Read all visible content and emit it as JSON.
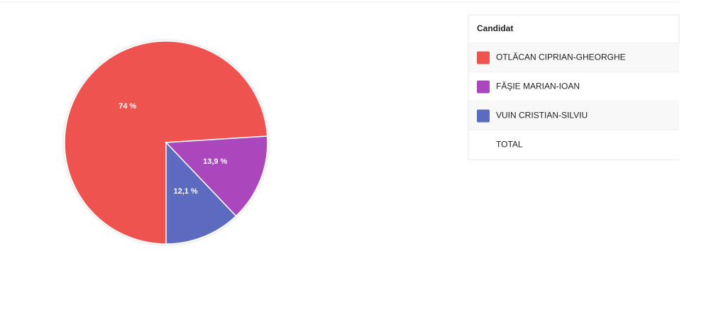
{
  "chart_data": {
    "type": "pie",
    "header": "Candidat",
    "categories": [
      "OTLĂCAN CIPRIAN-GHEORGHE",
      "FĂŞIE MARIAN-IOAN",
      "VUIN CRISTIAN-SILVIU"
    ],
    "values": [
      74,
      13.9,
      12.1
    ],
    "value_labels": [
      "74 %",
      "13,9 %",
      "12,1 %"
    ],
    "colors": [
      "#ef5350",
      "#ab47bc",
      "#5c6bc0"
    ],
    "total_label": "TOTAL"
  }
}
